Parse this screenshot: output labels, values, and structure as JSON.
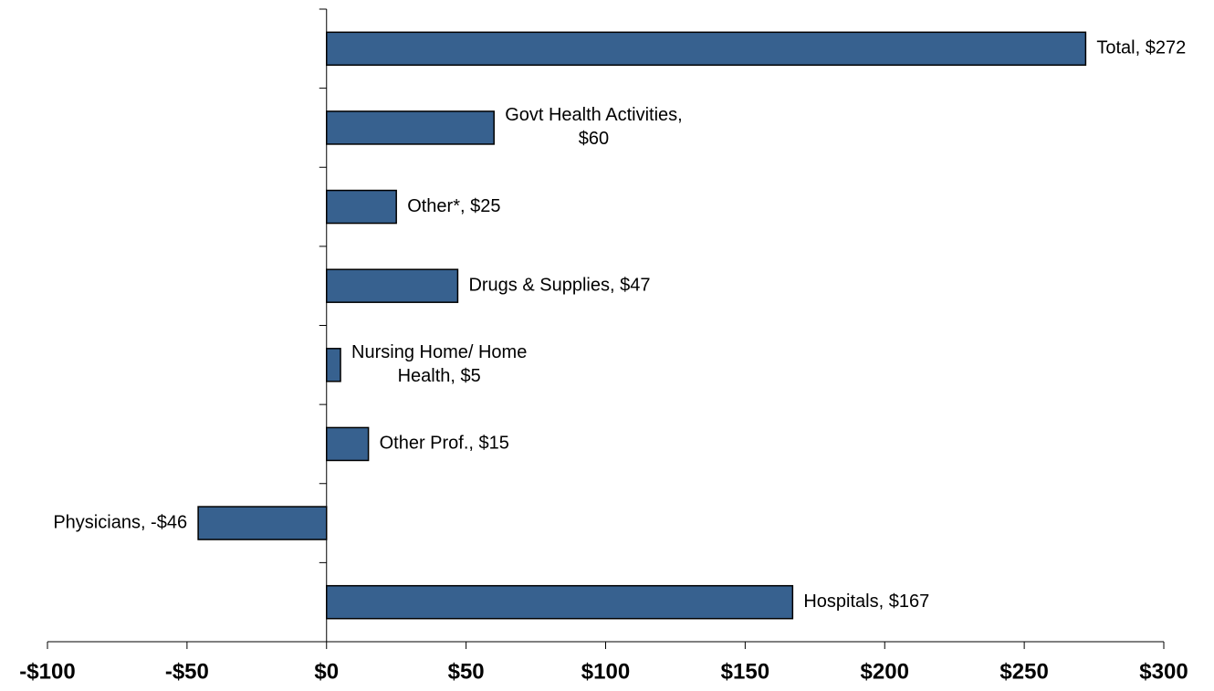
{
  "chart_data": {
    "type": "bar",
    "orientation": "horizontal",
    "color": "#37618f",
    "values": [
      272,
      60,
      25,
      47,
      5,
      15,
      -46,
      167
    ],
    "value_labels": [
      [
        "Total, $272"
      ],
      [
        "Govt Health Activities,",
        "$60"
      ],
      [
        "Other*, $25"
      ],
      [
        "Drugs & Supplies, $47"
      ],
      [
        "Nursing Home/ Home",
        "Health, $5"
      ],
      [
        "Other Prof., $15"
      ],
      [
        "Physicians, -$46"
      ],
      [
        "Hospitals, $167"
      ]
    ],
    "xlim": [
      -100,
      300
    ],
    "xticks": [
      {
        "value": -100,
        "label": "-$100"
      },
      {
        "value": -50,
        "label": "-$50"
      },
      {
        "value": 0,
        "label": "$0"
      },
      {
        "value": 50,
        "label": "$50"
      },
      {
        "value": 100,
        "label": "$100"
      },
      {
        "value": 150,
        "label": "$150"
      },
      {
        "value": 200,
        "label": "$200"
      },
      {
        "value": 250,
        "label": "$250"
      },
      {
        "value": 300,
        "label": "$300"
      }
    ]
  }
}
